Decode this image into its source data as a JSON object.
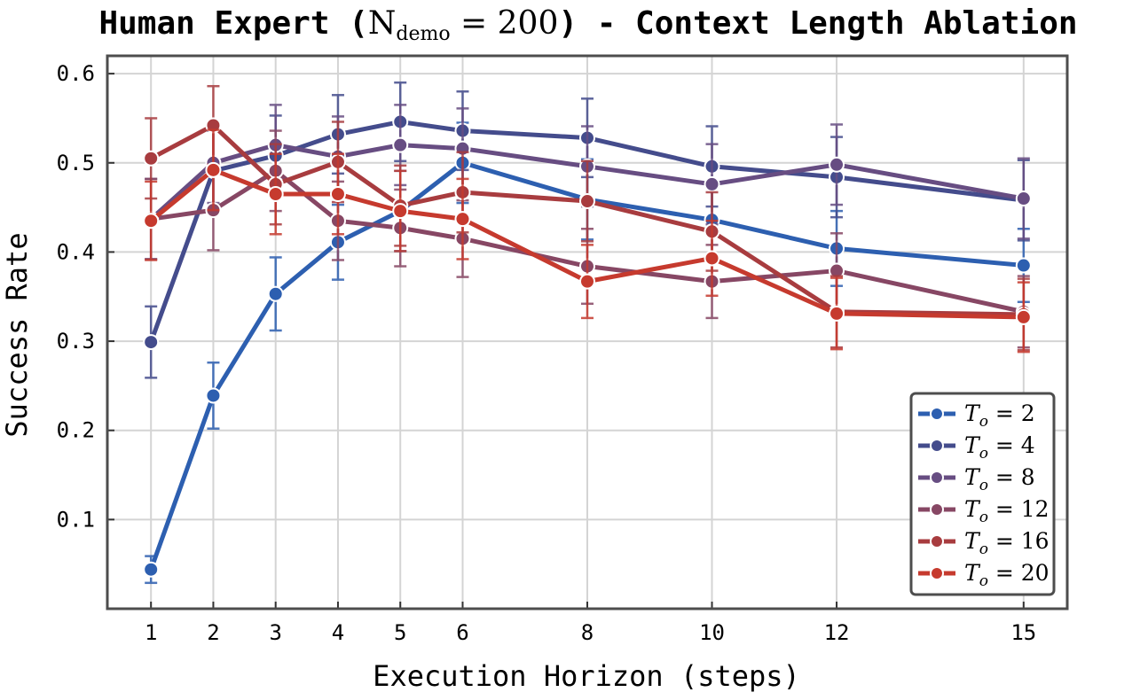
{
  "chart_data": {
    "type": "line",
    "title": "Human Expert (N_demo = 200) - Context Length Ablation",
    "title_parts": {
      "prefix": "Human Expert (",
      "symbol": "N",
      "subscript": "demo",
      "equals": " = 200",
      "suffix": ") - Context Length Ablation"
    },
    "xlabel": "Execution Horizon (steps)",
    "ylabel": "Success Rate",
    "x": [
      1,
      2,
      3,
      4,
      5,
      6,
      8,
      10,
      12,
      15
    ],
    "x_tick_labels": [
      "1",
      "2",
      "3",
      "4",
      "5",
      "6",
      "8",
      "10",
      "12",
      "15"
    ],
    "xlim": [
      0.3,
      15.7
    ],
    "ylim": [
      0.0,
      0.62
    ],
    "y_ticks": [
      0.1,
      0.2,
      0.3,
      0.4,
      0.5,
      0.6
    ],
    "y_tick_labels": [
      "0.1",
      "0.2",
      "0.3",
      "0.4",
      "0.5",
      "0.6"
    ],
    "grid": true,
    "legend_position": "lower-right",
    "series": [
      {
        "name": "T_o = 2",
        "legend_label": {
          "symbol": "T",
          "sub": "o",
          "value": " = 2"
        },
        "color": "#2d5fb0",
        "values": [
          0.044,
          0.239,
          0.353,
          0.411,
          0.446,
          0.5,
          0.459,
          0.436,
          0.404,
          0.385
        ],
        "errors": [
          0.015,
          0.037,
          0.041,
          0.042,
          0.045,
          0.045,
          0.045,
          0.043,
          0.042,
          0.041
        ]
      },
      {
        "name": "T_o = 4",
        "legend_label": {
          "symbol": "T",
          "sub": "o",
          "value": " = 4"
        },
        "color": "#444c8c",
        "values": [
          0.299,
          0.491,
          0.508,
          0.532,
          0.546,
          0.536,
          0.528,
          0.496,
          0.484,
          0.458
        ],
        "errors": [
          0.04,
          0.045,
          0.045,
          0.044,
          0.044,
          0.044,
          0.044,
          0.045,
          0.045,
          0.045
        ]
      },
      {
        "name": "T_o = 8",
        "legend_label": {
          "symbol": "T",
          "sub": "o",
          "value": " = 8"
        },
        "color": "#674d82",
        "values": [
          0.437,
          0.5,
          0.52,
          0.507,
          0.52,
          0.516,
          0.496,
          0.476,
          0.498,
          0.46
        ],
        "errors": [
          0.045,
          0.045,
          0.045,
          0.045,
          0.045,
          0.045,
          0.045,
          0.045,
          0.045,
          0.045
        ]
      },
      {
        "name": "T_o = 12",
        "legend_label": {
          "symbol": "T",
          "sub": "o",
          "value": " = 12"
        },
        "color": "#874764",
        "values": [
          0.437,
          0.447,
          0.491,
          0.435,
          0.427,
          0.415,
          0.384,
          0.367,
          0.379,
          0.333
        ],
        "errors": [
          0.045,
          0.045,
          0.045,
          0.044,
          0.043,
          0.043,
          0.042,
          0.041,
          0.042,
          0.04
        ]
      },
      {
        "name": "T_o = 16",
        "legend_label": {
          "symbol": "T",
          "sub": "o",
          "value": " = 16"
        },
        "color": "#a83c3f",
        "values": [
          0.505,
          0.542,
          0.476,
          0.501,
          0.452,
          0.467,
          0.457,
          0.423,
          0.333,
          0.33
        ],
        "errors": [
          0.045,
          0.044,
          0.045,
          0.045,
          0.045,
          0.045,
          0.045,
          0.044,
          0.04,
          0.04
        ]
      },
      {
        "name": "T_o = 20",
        "legend_label": {
          "symbol": "T",
          "sub": "o",
          "value": " = 20"
        },
        "color": "#c63a2e",
        "values": [
          0.435,
          0.492,
          0.465,
          0.465,
          0.446,
          0.437,
          0.367,
          0.393,
          0.331,
          0.327
        ],
        "errors": [
          0.044,
          0.045,
          0.045,
          0.045,
          0.045,
          0.045,
          0.041,
          0.042,
          0.04,
          0.039
        ]
      }
    ]
  }
}
